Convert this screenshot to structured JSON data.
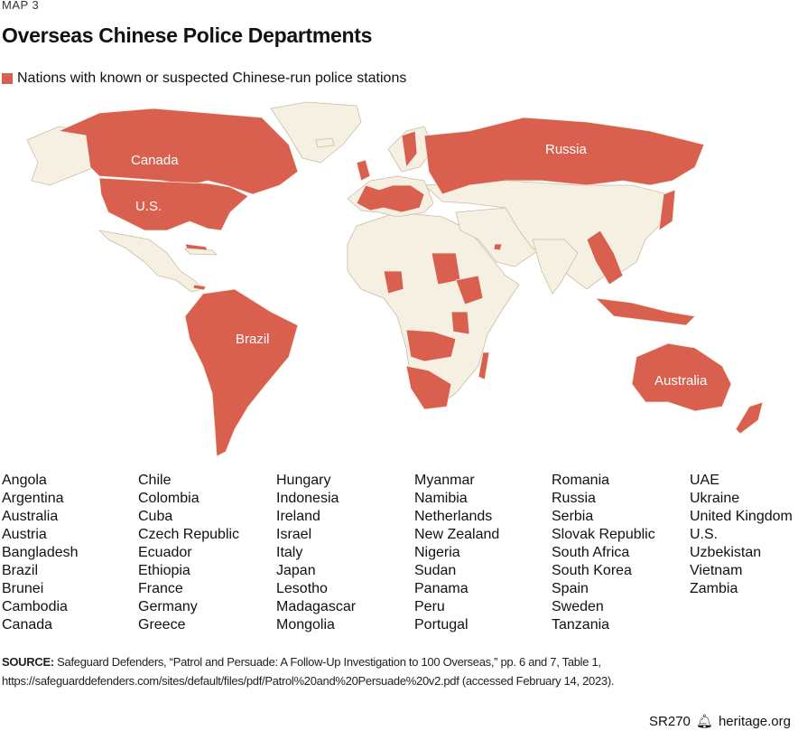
{
  "kicker": "MAP 3",
  "title": "Overseas Chinese Police Departments",
  "legend": {
    "label": "Nations with known or suspected Chinese-run police stations",
    "color": "#d9604f"
  },
  "colors": {
    "highlight": "#d9604f",
    "land": "#f6f0e2",
    "border": "#c8bea4"
  },
  "map_labels": {
    "canada": "Canada",
    "us": "U.S.",
    "russia": "Russia",
    "brazil": "Brazil",
    "australia": "Australia"
  },
  "countries": [
    [
      "Angola",
      "Argentina",
      "Australia",
      "Austria",
      "Bangladesh",
      "Brazil",
      "Brunei",
      "Cambodia",
      "Canada"
    ],
    [
      "Chile",
      "Colombia",
      "Cuba",
      "Czech Republic",
      "Ecuador",
      "Ethiopia",
      "France",
      "Germany",
      "Greece"
    ],
    [
      "Hungary",
      "Indonesia",
      "Ireland",
      "Israel",
      "Italy",
      "Japan",
      "Lesotho",
      "Madagascar",
      "Mongolia"
    ],
    [
      "Myanmar",
      "Namibia",
      "Netherlands",
      "New Zealand",
      "Nigeria",
      "Sudan",
      "Panama",
      "Peru",
      "Portugal"
    ],
    [
      "Romania",
      "Russia",
      "Serbia",
      "Slovak Republic",
      "South Africa",
      "South Korea",
      "Spain",
      "Sweden",
      "Tanzania"
    ],
    [
      "UAE",
      "Ukraine",
      "United Kingdom",
      "U.S.",
      "Uzbekistan",
      "Vietnam",
      "Zambia"
    ]
  ],
  "source": {
    "label": "SOURCE:",
    "text": "Safeguard Defenders, “Patrol and Persuade: A Follow-Up Investigation to 100 Overseas,” pp. 6 and 7, Table 1,",
    "url": "https://safeguarddefenders.com/sites/default/files/pdf/Patrol%20and%20Persuade%20v2.pdf (accessed February 14, 2023)."
  },
  "footer": {
    "code": "SR270",
    "site": "heritage.org",
    "icon": "bell-icon"
  }
}
